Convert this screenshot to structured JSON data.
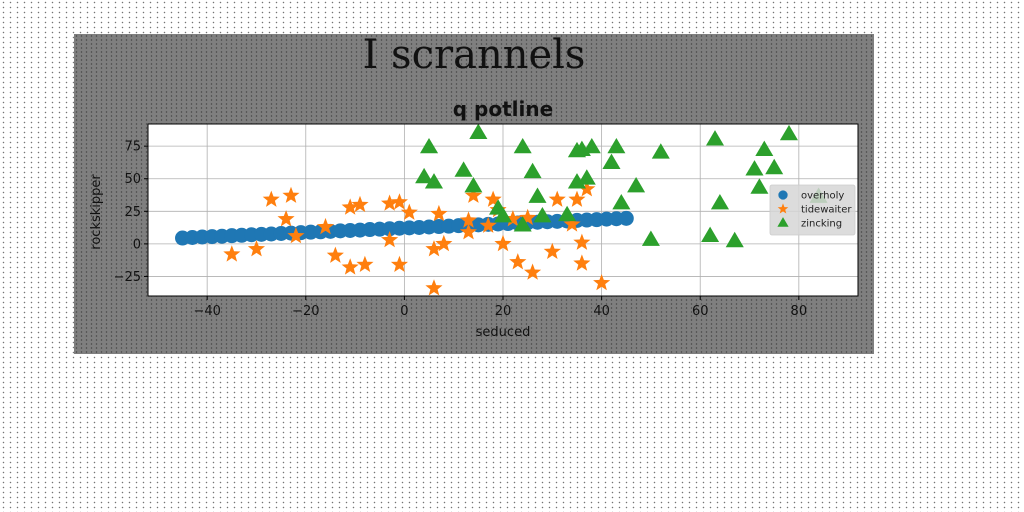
{
  "figure": {
    "suptitle": "I scrannels"
  },
  "chart_data": {
    "type": "scatter",
    "title": "q potline",
    "xlabel": "seduced",
    "ylabel": "rockskipper",
    "xlim": [
      -52,
      92
    ],
    "ylim": [
      -40,
      92
    ],
    "xticks": [
      -40,
      -20,
      0,
      20,
      40,
      60,
      80
    ],
    "yticks": [
      -25,
      0,
      25,
      50,
      75
    ],
    "grid": true,
    "legend_position": "center-right",
    "series": [
      {
        "name": "overholy",
        "marker": "circle",
        "color": "#1f77b4",
        "x": [
          -45,
          -43,
          -41,
          -39,
          -37,
          -35,
          -33,
          -31,
          -29,
          -27,
          -25,
          -23,
          -21,
          -19,
          -17,
          -15,
          -13,
          -11,
          -9,
          -7,
          -5,
          -3,
          -1,
          1,
          3,
          5,
          7,
          9,
          11,
          13,
          15,
          17,
          19,
          21,
          23,
          25,
          27,
          29,
          31,
          33,
          35,
          37,
          39,
          41,
          43,
          45
        ],
        "y": [
          4.5,
          4.9,
          5.3,
          5.6,
          5.9,
          6.3,
          6.6,
          7.0,
          7.3,
          7.6,
          8.0,
          8.3,
          8.6,
          9.0,
          9.3,
          9.6,
          10.0,
          10.3,
          10.6,
          11.0,
          11.3,
          11.6,
          12.0,
          12.3,
          12.6,
          13.0,
          13.3,
          13.6,
          14.0,
          14.3,
          14.6,
          15.0,
          15.3,
          15.6,
          16.0,
          16.3,
          16.6,
          17.0,
          17.3,
          17.6,
          18.0,
          18.3,
          18.6,
          19.0,
          19.3,
          19.6
        ]
      },
      {
        "name": "tidewaiter",
        "marker": "star",
        "color": "#ff7f0e",
        "x": [
          -35,
          -30,
          -27,
          -24,
          -23,
          -22,
          -16,
          -14,
          -11,
          -11,
          -9,
          -8,
          -3,
          -3,
          -1,
          -1,
          1,
          6,
          6,
          7,
          8,
          13,
          13,
          14,
          17,
          18,
          19,
          20,
          22,
          23,
          25,
          26,
          30,
          31,
          34,
          35,
          36,
          36,
          37,
          40
        ],
        "y": [
          -8,
          -4,
          34,
          19,
          37,
          6,
          13,
          -9,
          -18,
          28,
          30,
          -16,
          31,
          3,
          32,
          -16,
          24,
          -4,
          -34,
          23,
          0,
          9,
          18,
          37,
          14,
          34,
          26,
          0,
          19,
          -14,
          20,
          -22,
          -6,
          34,
          15,
          34,
          1,
          -15,
          42,
          -30
        ]
      },
      {
        "name": "zincking",
        "marker": "triangle",
        "color": "#2ca02c",
        "x": [
          4,
          5,
          6,
          12,
          14,
          15,
          19,
          20,
          24,
          24,
          26,
          27,
          28,
          33,
          35,
          35,
          36,
          37,
          38,
          42,
          43,
          44,
          47,
          50,
          52,
          62,
          63,
          64,
          67,
          71,
          72,
          73,
          75,
          78,
          84
        ],
        "y": [
          51,
          74,
          47,
          56,
          44,
          85,
          27,
          21,
          74,
          14,
          55,
          36,
          21,
          22,
          71,
          47,
          72,
          50,
          74,
          62,
          74,
          31,
          44,
          3,
          70,
          6,
          80,
          31,
          2,
          57,
          43,
          72,
          58,
          84,
          36
        ]
      }
    ]
  }
}
